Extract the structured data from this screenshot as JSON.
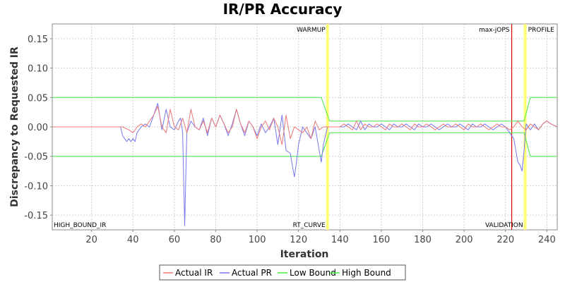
{
  "chart_data": {
    "type": "line",
    "title": "IR/PR Accuracy",
    "xlabel": "Iteration",
    "ylabel": "Discrepancy to Requested IR",
    "xlim": [
      1,
      245
    ],
    "ylim": [
      -0.175,
      0.175
    ],
    "x_ticks": [
      20,
      40,
      60,
      80,
      100,
      120,
      140,
      160,
      180,
      200,
      220,
      240
    ],
    "y_ticks": [
      -0.15,
      -0.1,
      -0.05,
      0.0,
      0.05,
      0.1,
      0.15
    ],
    "y_tick_labels": [
      "-0.15",
      "-0.10",
      "-0.05",
      "0.00",
      "0.05",
      "0.10",
      "0.15"
    ],
    "grid": true,
    "legend_position": "bottom",
    "colors": {
      "actual_ir": "#ee7777",
      "actual_pr": "#7777ee",
      "low_bound": "#44ee44",
      "high_bound": "#44ee44",
      "phase_yellow": "#ffff66",
      "max_jops": "#dd0000"
    },
    "phase_markers": [
      {
        "label": "WARMUP",
        "x": 134,
        "position": "top",
        "color": "#ffff66"
      },
      {
        "label": "max-jOPS",
        "x": 223,
        "position": "top",
        "color": "#dd0000"
      },
      {
        "label": "PROFILE",
        "x": 229.5,
        "position": "top",
        "color": "#ffff66"
      },
      {
        "label": "HIGH_BOUND_IR",
        "x": 1,
        "position": "bottom",
        "color": null
      },
      {
        "label": "RT_CURVE",
        "x": 134,
        "position": "bottom",
        "color": "#ffff66"
      },
      {
        "label": "VALIDATION",
        "x": 229.5,
        "position": "bottom",
        "color": "#ffff66"
      }
    ],
    "series": [
      {
        "name": "Actual IR",
        "x": [
          1,
          35,
          38,
          40,
          42,
          44,
          46,
          48,
          50,
          52,
          54,
          56,
          58,
          60,
          62,
          64,
          66,
          68,
          70,
          72,
          74,
          76,
          78,
          80,
          82,
          84,
          86,
          88,
          90,
          92,
          94,
          96,
          98,
          100,
          102,
          104,
          106,
          108,
          110,
          112,
          114,
          116,
          118,
          120,
          122,
          124,
          126,
          128,
          130,
          132,
          134,
          136,
          138,
          140,
          142,
          144,
          146,
          148,
          150,
          152,
          154,
          156,
          158,
          160,
          162,
          164,
          166,
          168,
          170,
          172,
          174,
          176,
          178,
          180,
          182,
          184,
          186,
          188,
          190,
          192,
          194,
          196,
          198,
          200,
          202,
          204,
          206,
          208,
          210,
          212,
          214,
          216,
          218,
          220,
          222,
          224,
          226,
          228,
          230,
          232,
          234,
          236,
          238,
          240,
          242,
          245
        ],
        "y": [
          0,
          0,
          -0.005,
          -0.01,
          0,
          0.005,
          0,
          0.01,
          0.02,
          0.035,
          0,
          -0.01,
          0.03,
          0,
          -0.005,
          0.015,
          -0.01,
          0.03,
          0,
          -0.005,
          0.01,
          -0.01,
          0.015,
          0,
          0.02,
          0.005,
          -0.01,
          0,
          0.03,
          0.005,
          -0.01,
          0.01,
          0,
          -0.02,
          0,
          0.01,
          -0.005,
          0.015,
          0,
          -0.03,
          0.02,
          -0.02,
          0,
          -0.005,
          -0.01,
          0,
          -0.02,
          0.01,
          -0.005,
          0,
          0,
          0,
          0,
          0,
          0.005,
          0,
          -0.005,
          0.01,
          -0.005,
          0.005,
          0,
          0,
          0.005,
          0,
          -0.005,
          0.005,
          0,
          0,
          0.005,
          0,
          -0.005,
          0.005,
          0,
          0,
          0.005,
          0,
          -0.005,
          0,
          0.005,
          0,
          0,
          0.005,
          0,
          -0.005,
          0.005,
          0,
          0,
          0.005,
          0,
          -0.005,
          0,
          0.005,
          0,
          0,
          -0.005,
          0,
          0.01,
          0,
          -0.005,
          0.005,
          0,
          -0.005,
          0.005,
          0.01,
          0.005,
          0
        ]
      },
      {
        "name": "Actual PR",
        "x": [
          1,
          34,
          35,
          36,
          37,
          38,
          39,
          40,
          41,
          42,
          44,
          46,
          48,
          50,
          52,
          54,
          56,
          58,
          60,
          62,
          63,
          64,
          65,
          66,
          68,
          70,
          72,
          74,
          76,
          78,
          80,
          82,
          84,
          86,
          88,
          90,
          92,
          94,
          96,
          98,
          100,
          102,
          104,
          106,
          108,
          110,
          112,
          114,
          116,
          118,
          119,
          120,
          122,
          124,
          126,
          128,
          130,
          131,
          132,
          134,
          136,
          138,
          140,
          142,
          144,
          146,
          148,
          150,
          152,
          154,
          156,
          158,
          160,
          162,
          164,
          166,
          168,
          170,
          172,
          174,
          176,
          178,
          180,
          182,
          184,
          186,
          188,
          190,
          192,
          194,
          196,
          198,
          200,
          202,
          204,
          206,
          208,
          210,
          212,
          214,
          216,
          218,
          220,
          222,
          224,
          225,
          226,
          227,
          228,
          229,
          230,
          232,
          234,
          236,
          238,
          240,
          242,
          245
        ],
        "y": [
          0,
          0,
          -0.015,
          -0.02,
          -0.025,
          -0.02,
          -0.025,
          -0.02,
          -0.025,
          -0.01,
          0,
          0.005,
          0,
          0.02,
          0.04,
          -0.005,
          0.03,
          0,
          -0.005,
          0.01,
          0.015,
          -0.01,
          -0.168,
          -0.01,
          0.01,
          0,
          -0.005,
          0.015,
          -0.015,
          0.015,
          0,
          0.02,
          0.005,
          -0.015,
          0.005,
          0.03,
          0.005,
          -0.015,
          0.01,
          0,
          -0.015,
          0.005,
          -0.01,
          0,
          0.015,
          -0.03,
          0.02,
          -0.04,
          -0.045,
          -0.085,
          -0.06,
          -0.03,
          0,
          -0.01,
          -0.02,
          0,
          -0.04,
          -0.06,
          -0.03,
          0,
          0,
          0,
          0,
          0,
          0.005,
          0,
          -0.005,
          0.01,
          -0.005,
          0.005,
          0,
          0,
          0.005,
          0,
          -0.005,
          0.005,
          0,
          0,
          0.005,
          0,
          -0.005,
          0.005,
          0,
          0,
          0.005,
          0,
          -0.005,
          0,
          0.005,
          0,
          0,
          0.005,
          0,
          -0.005,
          0.005,
          0,
          0,
          0.005,
          0,
          -0.005,
          0,
          0.005,
          0,
          -0.01,
          -0.02,
          -0.04,
          -0.06,
          -0.065,
          -0.075,
          -0.04,
          0.005,
          -0.005,
          0.005,
          -0.005,
          0.005,
          0.01,
          0.005,
          0
        ]
      },
      {
        "name": "Low Bound",
        "x": [
          1,
          131,
          135,
          229,
          232,
          245
        ],
        "y": [
          -0.05,
          -0.05,
          -0.01,
          -0.01,
          -0.05,
          -0.05
        ]
      },
      {
        "name": "High Bound",
        "x": [
          1,
          131,
          135,
          229,
          232,
          245
        ],
        "y": [
          0.05,
          0.05,
          0.01,
          0.01,
          0.05,
          0.05
        ]
      }
    ]
  }
}
